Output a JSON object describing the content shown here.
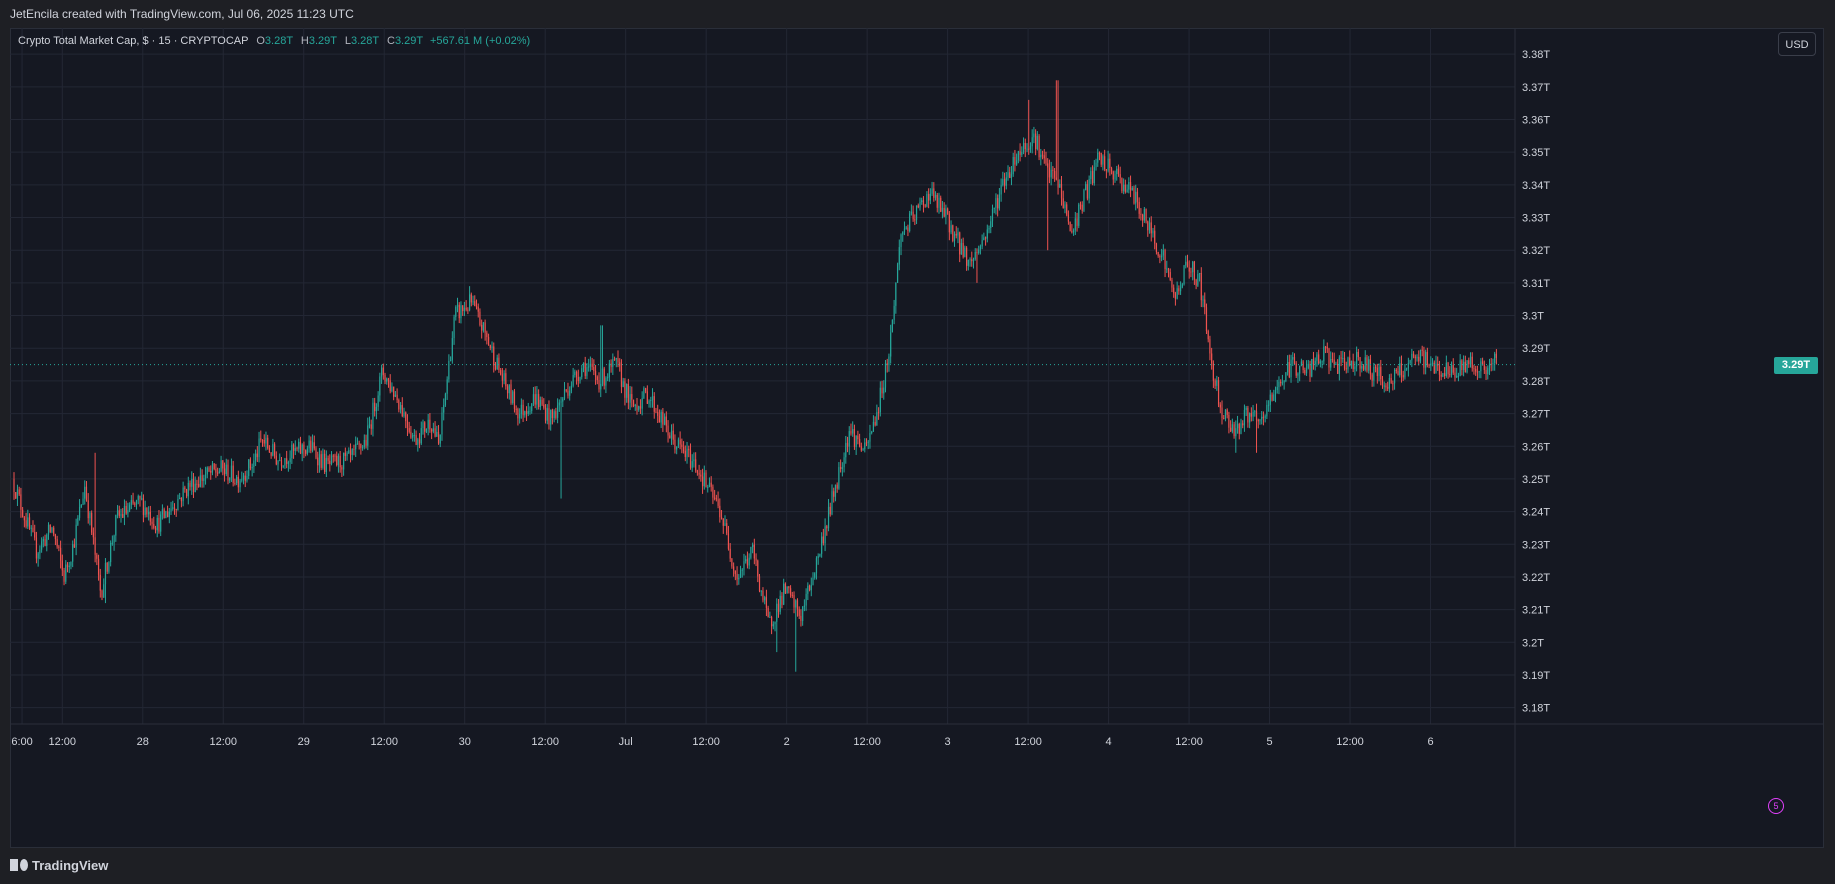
{
  "header": {
    "credit": "JetEncila created with TradingView.com, Jul 06, 2025 11:23 UTC"
  },
  "legend": {
    "symbol": "Crypto Total Market Cap, $ · 15 · CRYPTOCAP",
    "o_label": "O",
    "o_value": "3.28T",
    "h_label": "H",
    "h_value": "3.29T",
    "l_label": "L",
    "l_value": "3.28T",
    "c_label": "C",
    "c_value": "3.29T",
    "change": "+567.61 M (+0.02%)"
  },
  "currency_button": "USD",
  "last_price_label": "3.29T",
  "badge": "5",
  "footer": {
    "brand": "TradingView"
  },
  "colors": {
    "up": "#26a69a",
    "down": "#ef5350",
    "background": "#151822",
    "grid": "#232734",
    "text": "#d1d4dc"
  },
  "chart_data": {
    "type": "candlestick",
    "interval": "15",
    "y_unit": "T",
    "ylim": [
      3.175,
      3.388
    ],
    "y_ticks": [
      3.18,
      3.19,
      3.2,
      3.21,
      3.22,
      3.23,
      3.24,
      3.25,
      3.26,
      3.27,
      3.28,
      3.29,
      3.3,
      3.31,
      3.32,
      3.33,
      3.34,
      3.35,
      3.36,
      3.37,
      3.38
    ],
    "y_tick_labels": [
      "3.18T",
      "3.19T",
      "3.2T",
      "3.21T",
      "3.22T",
      "3.23T",
      "3.24T",
      "3.25T",
      "3.26T",
      "3.27T",
      "3.28T",
      "3.29T",
      "3.3T",
      "3.31T",
      "3.32T",
      "3.33T",
      "3.34T",
      "3.35T",
      "3.36T",
      "3.37T",
      "3.38T"
    ],
    "x_ticks": [
      {
        "label": "6:00",
        "t": -0.25
      },
      {
        "label": "12:00",
        "t": 0
      },
      {
        "label": "28",
        "t": 0.5
      },
      {
        "label": "12:00",
        "t": 1
      },
      {
        "label": "29",
        "t": 1.5
      },
      {
        "label": "12:00",
        "t": 2
      },
      {
        "label": "30",
        "t": 2.5
      },
      {
        "label": "12:00",
        "t": 3
      },
      {
        "label": "Jul",
        "t": 3.5
      },
      {
        "label": "12:00",
        "t": 4
      },
      {
        "label": "2",
        "t": 4.5
      },
      {
        "label": "12:00",
        "t": 5
      },
      {
        "label": "3",
        "t": 5.5
      },
      {
        "label": "12:00",
        "t": 6
      },
      {
        "label": "4",
        "t": 6.5
      },
      {
        "label": "12:00",
        "t": 7
      },
      {
        "label": "5",
        "t": 7.5
      },
      {
        "label": "12:00",
        "t": 8
      },
      {
        "label": "6",
        "t": 8.5
      }
    ],
    "x_range": [
      -0.3,
      9.0
    ],
    "last_price": 3.285,
    "price_path": [
      {
        "t": -0.3,
        "p": 3.25
      },
      {
        "t": -0.22,
        "p": 3.238
      },
      {
        "t": -0.15,
        "p": 3.228
      },
      {
        "t": -0.05,
        "p": 3.235
      },
      {
        "t": 0.02,
        "p": 3.22
      },
      {
        "t": 0.08,
        "p": 3.23
      },
      {
        "t": 0.15,
        "p": 3.248
      },
      {
        "t": 0.25,
        "p": 3.215
      },
      {
        "t": 0.35,
        "p": 3.238
      },
      {
        "t": 0.5,
        "p": 3.243
      },
      {
        "t": 0.6,
        "p": 3.236
      },
      {
        "t": 0.7,
        "p": 3.242
      },
      {
        "t": 0.8,
        "p": 3.248
      },
      {
        "t": 0.9,
        "p": 3.251
      },
      {
        "t": 1.0,
        "p": 3.253
      },
      {
        "t": 1.1,
        "p": 3.25
      },
      {
        "t": 1.2,
        "p": 3.255
      },
      {
        "t": 1.25,
        "p": 3.262
      },
      {
        "t": 1.35,
        "p": 3.256
      },
      {
        "t": 1.45,
        "p": 3.258
      },
      {
        "t": 1.55,
        "p": 3.26
      },
      {
        "t": 1.65,
        "p": 3.254
      },
      {
        "t": 1.8,
        "p": 3.256
      },
      {
        "t": 1.9,
        "p": 3.262
      },
      {
        "t": 2.0,
        "p": 3.283
      },
      {
        "t": 2.1,
        "p": 3.274
      },
      {
        "t": 2.2,
        "p": 3.262
      },
      {
        "t": 2.3,
        "p": 3.268
      },
      {
        "t": 2.35,
        "p": 3.26
      },
      {
        "t": 2.45,
        "p": 3.3
      },
      {
        "t": 2.55,
        "p": 3.304
      },
      {
        "t": 2.65,
        "p": 3.293
      },
      {
        "t": 2.75,
        "p": 3.28
      },
      {
        "t": 2.85,
        "p": 3.27
      },
      {
        "t": 2.95,
        "p": 3.275
      },
      {
        "t": 3.05,
        "p": 3.268
      },
      {
        "t": 3.15,
        "p": 3.278
      },
      {
        "t": 3.25,
        "p": 3.285
      },
      {
        "t": 3.35,
        "p": 3.28
      },
      {
        "t": 3.45,
        "p": 3.285
      },
      {
        "t": 3.55,
        "p": 3.272
      },
      {
        "t": 3.65,
        "p": 3.276
      },
      {
        "t": 3.8,
        "p": 3.262
      },
      {
        "t": 3.95,
        "p": 3.254
      },
      {
        "t": 4.1,
        "p": 3.24
      },
      {
        "t": 4.2,
        "p": 3.22
      },
      {
        "t": 4.3,
        "p": 3.228
      },
      {
        "t": 4.4,
        "p": 3.205
      },
      {
        "t": 4.5,
        "p": 3.216
      },
      {
        "t": 4.6,
        "p": 3.208
      },
      {
        "t": 4.7,
        "p": 3.225
      },
      {
        "t": 4.8,
        "p": 3.245
      },
      {
        "t": 4.9,
        "p": 3.265
      },
      {
        "t": 5.0,
        "p": 3.258
      },
      {
        "t": 5.08,
        "p": 3.272
      },
      {
        "t": 5.15,
        "p": 3.29
      },
      {
        "t": 5.22,
        "p": 3.325
      },
      {
        "t": 5.3,
        "p": 3.33
      },
      {
        "t": 5.4,
        "p": 3.338
      },
      {
        "t": 5.5,
        "p": 3.33
      },
      {
        "t": 5.58,
        "p": 3.322
      },
      {
        "t": 5.65,
        "p": 3.316
      },
      {
        "t": 5.75,
        "p": 3.325
      },
      {
        "t": 5.85,
        "p": 3.34
      },
      {
        "t": 5.95,
        "p": 3.35
      },
      {
        "t": 6.05,
        "p": 3.355
      },
      {
        "t": 6.12,
        "p": 3.345
      },
      {
        "t": 6.2,
        "p": 3.34
      },
      {
        "t": 6.28,
        "p": 3.325
      },
      {
        "t": 6.35,
        "p": 3.335
      },
      {
        "t": 6.45,
        "p": 3.348
      },
      {
        "t": 6.55,
        "p": 3.343
      },
      {
        "t": 6.65,
        "p": 3.338
      },
      {
        "t": 6.75,
        "p": 3.328
      },
      {
        "t": 6.85,
        "p": 3.318
      },
      {
        "t": 6.92,
        "p": 3.305
      },
      {
        "t": 7.0,
        "p": 3.316
      },
      {
        "t": 7.08,
        "p": 3.31
      },
      {
        "t": 7.15,
        "p": 3.285
      },
      {
        "t": 7.22,
        "p": 3.27
      },
      {
        "t": 7.3,
        "p": 3.265
      },
      {
        "t": 7.38,
        "p": 3.27
      },
      {
        "t": 7.45,
        "p": 3.266
      },
      {
        "t": 7.55,
        "p": 3.278
      },
      {
        "t": 7.65,
        "p": 3.285
      },
      {
        "t": 7.75,
        "p": 3.283
      },
      {
        "t": 7.85,
        "p": 3.288
      },
      {
        "t": 7.95,
        "p": 3.284
      },
      {
        "t": 8.05,
        "p": 3.287
      },
      {
        "t": 8.15,
        "p": 3.283
      },
      {
        "t": 8.25,
        "p": 3.279
      },
      {
        "t": 8.35,
        "p": 3.284
      },
      {
        "t": 8.45,
        "p": 3.287
      },
      {
        "t": 8.55,
        "p": 3.284
      },
      {
        "t": 8.65,
        "p": 3.282
      },
      {
        "t": 8.75,
        "p": 3.286
      },
      {
        "t": 8.85,
        "p": 3.283
      },
      {
        "t": 8.92,
        "p": 3.286
      }
    ],
    "extremes": [
      {
        "t": 0.2,
        "high": 3.258
      },
      {
        "t": 0.27,
        "low": 3.212
      },
      {
        "t": 2.53,
        "high": 3.309
      },
      {
        "t": 3.35,
        "high": 3.297
      },
      {
        "t": 3.1,
        "low": 3.244
      },
      {
        "t": 4.44,
        "low": 3.197
      },
      {
        "t": 4.56,
        "low": 3.191
      },
      {
        "t": 6.0,
        "high": 3.366
      },
      {
        "t": 6.18,
        "high": 3.372
      },
      {
        "t": 6.12,
        "low": 3.32
      },
      {
        "t": 5.68,
        "low": 3.31
      },
      {
        "t": 7.29,
        "low": 3.258
      },
      {
        "t": 7.42,
        "low": 3.258
      }
    ]
  }
}
